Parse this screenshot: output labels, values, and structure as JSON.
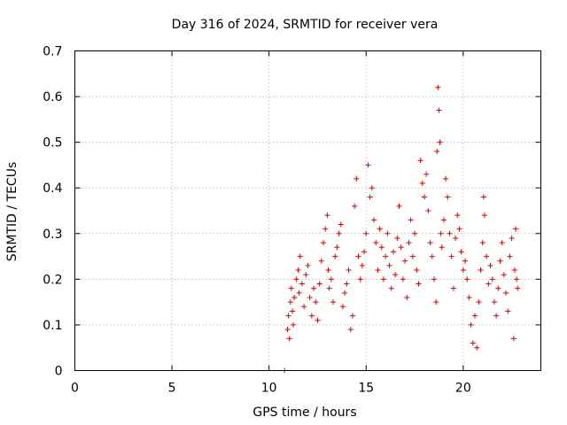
{
  "chart_data": {
    "type": "scatter",
    "title": "Day 316 of 2024, SRMTID for receiver vera",
    "xlabel": "GPS time / hours",
    "ylabel": "SRMTID / TECUs",
    "xlim": [
      0,
      24
    ],
    "ylim": [
      0,
      0.7
    ],
    "xticks": [
      "0",
      "5",
      "10",
      "15",
      "20"
    ],
    "yticks": [
      "0",
      "0.1",
      "0.2",
      "0.3",
      "0.4",
      "0.5",
      "0.6",
      "0.7"
    ],
    "grid": true,
    "marker": "+",
    "color": "#e00000",
    "series": [
      {
        "name": "SRMTID",
        "points": [
          [
            10.8,
            0.0
          ],
          [
            10.95,
            0.09
          ],
          [
            11.0,
            0.12
          ],
          [
            11.05,
            0.07
          ],
          [
            11.1,
            0.15
          ],
          [
            11.15,
            0.18
          ],
          [
            11.2,
            0.13
          ],
          [
            11.25,
            0.1
          ],
          [
            11.3,
            0.16
          ],
          [
            11.4,
            0.2
          ],
          [
            11.5,
            0.22
          ],
          [
            11.55,
            0.17
          ],
          [
            11.6,
            0.25
          ],
          [
            11.7,
            0.19
          ],
          [
            11.8,
            0.14
          ],
          [
            11.9,
            0.21
          ],
          [
            12.0,
            0.23
          ],
          [
            12.1,
            0.16
          ],
          [
            12.2,
            0.12
          ],
          [
            12.3,
            0.18
          ],
          [
            12.4,
            0.15
          ],
          [
            12.5,
            0.11
          ],
          [
            12.6,
            0.19
          ],
          [
            12.7,
            0.24
          ],
          [
            12.8,
            0.28
          ],
          [
            12.9,
            0.31
          ],
          [
            13.0,
            0.34
          ],
          [
            13.05,
            0.22
          ],
          [
            13.1,
            0.18
          ],
          [
            13.2,
            0.2
          ],
          [
            13.3,
            0.15
          ],
          [
            13.4,
            0.25
          ],
          [
            13.5,
            0.27
          ],
          [
            13.6,
            0.3
          ],
          [
            13.7,
            0.32
          ],
          [
            13.8,
            0.14
          ],
          [
            13.9,
            0.17
          ],
          [
            14.0,
            0.19
          ],
          [
            14.1,
            0.22
          ],
          [
            14.2,
            0.09
          ],
          [
            14.3,
            0.12
          ],
          [
            14.4,
            0.36
          ],
          [
            14.5,
            0.42
          ],
          [
            14.6,
            0.25
          ],
          [
            14.7,
            0.2
          ],
          [
            14.8,
            0.23
          ],
          [
            14.9,
            0.26
          ],
          [
            15.0,
            0.3
          ],
          [
            15.1,
            0.45
          ],
          [
            15.2,
            0.38
          ],
          [
            15.3,
            0.4
          ],
          [
            15.4,
            0.33
          ],
          [
            15.5,
            0.28
          ],
          [
            15.6,
            0.22
          ],
          [
            15.7,
            0.31
          ],
          [
            15.8,
            0.27
          ],
          [
            15.9,
            0.2
          ],
          [
            16.0,
            0.25
          ],
          [
            16.1,
            0.3
          ],
          [
            16.2,
            0.23
          ],
          [
            16.3,
            0.18
          ],
          [
            16.4,
            0.26
          ],
          [
            16.5,
            0.21
          ],
          [
            16.6,
            0.29
          ],
          [
            16.7,
            0.36
          ],
          [
            16.8,
            0.27
          ],
          [
            16.9,
            0.2
          ],
          [
            17.0,
            0.24
          ],
          [
            17.1,
            0.16
          ],
          [
            17.2,
            0.28
          ],
          [
            17.3,
            0.33
          ],
          [
            17.4,
            0.25
          ],
          [
            17.5,
            0.3
          ],
          [
            17.6,
            0.22
          ],
          [
            17.7,
            0.19
          ],
          [
            17.8,
            0.46
          ],
          [
            17.9,
            0.41
          ],
          [
            18.0,
            0.38
          ],
          [
            18.1,
            0.43
          ],
          [
            18.2,
            0.35
          ],
          [
            18.3,
            0.28
          ],
          [
            18.4,
            0.25
          ],
          [
            18.5,
            0.2
          ],
          [
            18.6,
            0.15
          ],
          [
            18.65,
            0.48
          ],
          [
            18.7,
            0.62
          ],
          [
            18.75,
            0.57
          ],
          [
            18.8,
            0.5
          ],
          [
            18.85,
            0.3
          ],
          [
            18.9,
            0.27
          ],
          [
            19.0,
            0.33
          ],
          [
            19.1,
            0.42
          ],
          [
            19.2,
            0.38
          ],
          [
            19.3,
            0.3
          ],
          [
            19.4,
            0.25
          ],
          [
            19.5,
            0.18
          ],
          [
            19.6,
            0.29
          ],
          [
            19.7,
            0.34
          ],
          [
            19.8,
            0.31
          ],
          [
            19.9,
            0.26
          ],
          [
            20.0,
            0.22
          ],
          [
            20.1,
            0.24
          ],
          [
            20.2,
            0.2
          ],
          [
            20.3,
            0.16
          ],
          [
            20.4,
            0.1
          ],
          [
            20.5,
            0.06
          ],
          [
            20.6,
            0.12
          ],
          [
            20.7,
            0.05
          ],
          [
            20.8,
            0.15
          ],
          [
            20.9,
            0.22
          ],
          [
            21.0,
            0.28
          ],
          [
            21.05,
            0.38
          ],
          [
            21.1,
            0.34
          ],
          [
            21.2,
            0.25
          ],
          [
            21.3,
            0.19
          ],
          [
            21.4,
            0.23
          ],
          [
            21.5,
            0.2
          ],
          [
            21.6,
            0.15
          ],
          [
            21.7,
            0.12
          ],
          [
            21.8,
            0.18
          ],
          [
            21.9,
            0.24
          ],
          [
            22.0,
            0.28
          ],
          [
            22.1,
            0.21
          ],
          [
            22.2,
            0.17
          ],
          [
            22.3,
            0.13
          ],
          [
            22.4,
            0.25
          ],
          [
            22.5,
            0.29
          ],
          [
            22.6,
            0.07
          ],
          [
            22.65,
            0.22
          ],
          [
            22.7,
            0.31
          ],
          [
            22.75,
            0.2
          ],
          [
            22.8,
            0.18
          ]
        ]
      }
    ]
  }
}
